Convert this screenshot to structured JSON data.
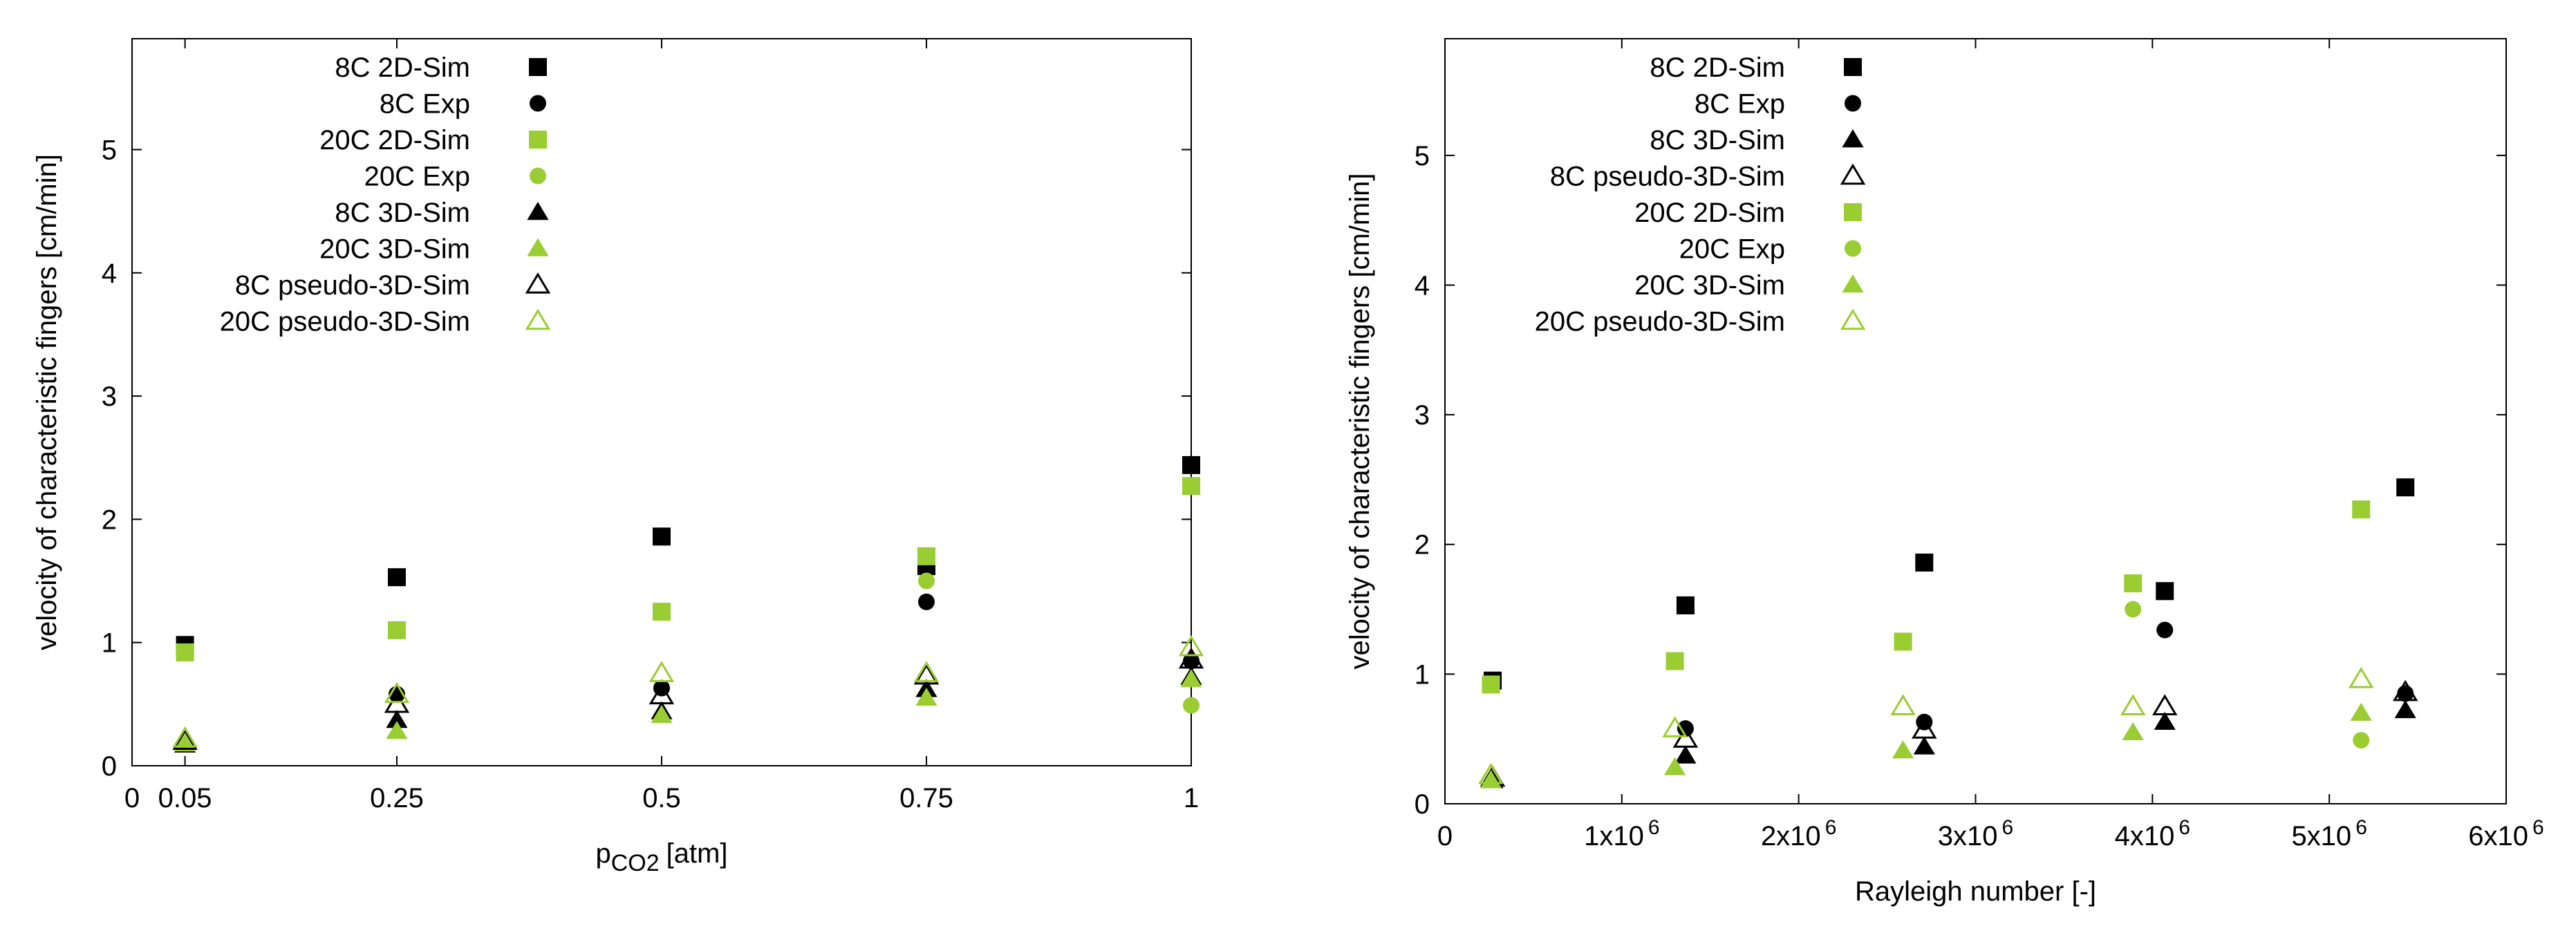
{
  "colors": {
    "black": "#000000",
    "green": "#9acd32"
  },
  "chart_data": [
    {
      "type": "scatter",
      "xlabel": "p",
      "xlabel_sub": "CO2",
      "xlabel_unit": "[atm]",
      "ylabel": "velocity of characteristic fingers [cm/min]",
      "xlim": [
        0,
        1
      ],
      "ylim": [
        0,
        5.9
      ],
      "xticks": [
        {
          "value": 0,
          "label": "0"
        },
        {
          "value": 0.05,
          "label": "0.05"
        },
        {
          "value": 0.25,
          "label": "0.25"
        },
        {
          "value": 0.5,
          "label": "0.5"
        },
        {
          "value": 0.75,
          "label": "0.75"
        },
        {
          "value": 1,
          "label": "1"
        }
      ],
      "yticks": [
        {
          "value": 0,
          "label": "0"
        },
        {
          "value": 1,
          "label": "1"
        },
        {
          "value": 2,
          "label": "2"
        },
        {
          "value": 3,
          "label": "3"
        },
        {
          "value": 4,
          "label": "4"
        },
        {
          "value": 5,
          "label": "5"
        }
      ],
      "grid": false,
      "legend_position": "top-left",
      "series": [
        {
          "name": "8C 2D-Sim",
          "marker": "square",
          "color": "#000000",
          "filled": true,
          "x": [
            0.05,
            0.25,
            0.5,
            0.75,
            1.0
          ],
          "y": [
            0.98,
            1.53,
            1.86,
            1.62,
            2.44
          ]
        },
        {
          "name": "8C Exp",
          "marker": "circle",
          "color": "#000000",
          "filled": true,
          "x": [
            0.25,
            0.5,
            0.75,
            1.0
          ],
          "y": [
            0.58,
            0.63,
            1.33,
            0.85
          ]
        },
        {
          "name": "20C 2D-Sim",
          "marker": "square",
          "color": "#9acd32",
          "filled": true,
          "x": [
            0.05,
            0.25,
            0.5,
            0.75,
            1.0
          ],
          "y": [
            0.92,
            1.1,
            1.25,
            1.7,
            2.27
          ]
        },
        {
          "name": "20C Exp",
          "marker": "circle",
          "color": "#9acd32",
          "filled": true,
          "x": [
            0.75,
            1.0
          ],
          "y": [
            1.5,
            0.49
          ]
        },
        {
          "name": "8C 3D-Sim",
          "marker": "triangle",
          "color": "#000000",
          "filled": true,
          "x": [
            0.05,
            0.25,
            0.5,
            0.75,
            1.0
          ],
          "y": [
            0.17,
            0.37,
            0.44,
            0.62,
            0.72
          ]
        },
        {
          "name": "20C 3D-Sim",
          "marker": "triangle",
          "color": "#9acd32",
          "filled": true,
          "x": [
            0.05,
            0.25,
            0.5,
            0.75,
            1.0
          ],
          "y": [
            0.18,
            0.28,
            0.41,
            0.55,
            0.7
          ]
        },
        {
          "name": "8C pseudo-3D-Sim",
          "marker": "triangle",
          "color": "#000000",
          "filled": false,
          "x": [
            0.05,
            0.25,
            0.5,
            0.75,
            1.0
          ],
          "y": [
            0.2,
            0.5,
            0.57,
            0.73,
            0.86
          ]
        },
        {
          "name": "20C pseudo-3D-Sim",
          "marker": "triangle",
          "color": "#9acd32",
          "filled": false,
          "x": [
            0.05,
            0.25,
            0.5,
            0.75,
            1.0
          ],
          "y": [
            0.22,
            0.58,
            0.75,
            0.75,
            0.96
          ]
        }
      ]
    },
    {
      "type": "scatter",
      "xlabel": "Rayleigh number [-]",
      "ylabel": "velocity of characteristic fingers [cm/min]",
      "xlim": [
        0,
        6000000
      ],
      "ylim": [
        0,
        5.9
      ],
      "xticks": [
        {
          "value": 0,
          "base": "0",
          "exp": ""
        },
        {
          "value": 1000000,
          "base": "1x10",
          "exp": "6"
        },
        {
          "value": 2000000,
          "base": "2x10",
          "exp": "6"
        },
        {
          "value": 3000000,
          "base": "3x10",
          "exp": "6"
        },
        {
          "value": 4000000,
          "base": "4x10",
          "exp": "6"
        },
        {
          "value": 5000000,
          "base": "5x10",
          "exp": "6"
        },
        {
          "value": 6000000,
          "base": "6x10",
          "exp": "6"
        }
      ],
      "yticks": [
        {
          "value": 0,
          "label": "0"
        },
        {
          "value": 1,
          "label": "1"
        },
        {
          "value": 2,
          "label": "2"
        },
        {
          "value": 3,
          "label": "3"
        },
        {
          "value": 4,
          "label": "4"
        },
        {
          "value": 5,
          "label": "5"
        }
      ],
      "grid": false,
      "legend_position": "top-left",
      "series": [
        {
          "name": "8C 2D-Sim",
          "marker": "square",
          "color": "#000000",
          "filled": true,
          "x": [
            270000,
            1360000,
            2710000,
            4070000,
            5430000
          ],
          "y": [
            0.95,
            1.53,
            1.86,
            1.64,
            2.44
          ]
        },
        {
          "name": "8C Exp",
          "marker": "circle",
          "color": "#000000",
          "filled": true,
          "x": [
            1360000,
            2710000,
            4070000,
            5430000
          ],
          "y": [
            0.58,
            0.63,
            1.34,
            0.85
          ]
        },
        {
          "name": "8C 3D-Sim",
          "marker": "triangle",
          "color": "#000000",
          "filled": true,
          "x": [
            270000,
            1360000,
            2710000,
            4070000,
            5430000
          ],
          "y": [
            0.18,
            0.37,
            0.44,
            0.63,
            0.72
          ]
        },
        {
          "name": "8C pseudo-3D-Sim",
          "marker": "triangle",
          "color": "#000000",
          "filled": false,
          "x": [
            270000,
            1360000,
            2710000,
            4070000,
            5430000
          ],
          "y": [
            0.2,
            0.5,
            0.57,
            0.75,
            0.86
          ]
        },
        {
          "name": "20C 2D-Sim",
          "marker": "square",
          "color": "#9acd32",
          "filled": true,
          "x": [
            260000,
            1300000,
            2590000,
            3890000,
            5180000
          ],
          "y": [
            0.92,
            1.1,
            1.25,
            1.7,
            2.27
          ]
        },
        {
          "name": "20C Exp",
          "marker": "circle",
          "color": "#9acd32",
          "filled": true,
          "x": [
            3890000,
            5180000
          ],
          "y": [
            1.5,
            0.49
          ]
        },
        {
          "name": "20C 3D-Sim",
          "marker": "triangle",
          "color": "#9acd32",
          "filled": true,
          "x": [
            260000,
            1300000,
            2590000,
            3890000,
            5180000
          ],
          "y": [
            0.18,
            0.28,
            0.41,
            0.55,
            0.7
          ]
        },
        {
          "name": "20C pseudo-3D-Sim",
          "marker": "triangle",
          "color": "#9acd32",
          "filled": false,
          "x": [
            260000,
            1300000,
            2590000,
            3890000,
            5180000
          ],
          "y": [
            0.22,
            0.58,
            0.75,
            0.75,
            0.96
          ]
        }
      ]
    }
  ]
}
